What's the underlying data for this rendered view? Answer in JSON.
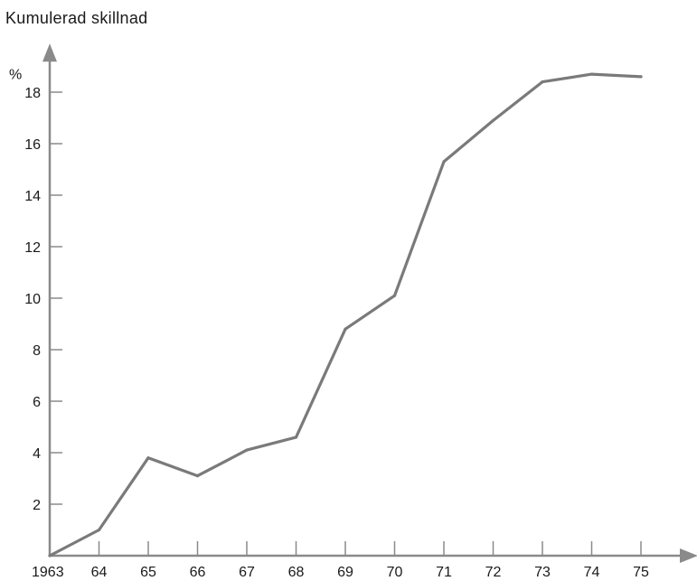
{
  "chart_data": {
    "type": "line",
    "title": "Kumulerad skillnad",
    "ylabel": "%",
    "xlabel": "",
    "x_tick_labels": [
      "1963",
      "64",
      "65",
      "66",
      "67",
      "68",
      "69",
      "70",
      "71",
      "72",
      "73",
      "74",
      "75"
    ],
    "y_ticks": [
      2,
      4,
      6,
      8,
      10,
      12,
      14,
      16,
      18
    ],
    "xlim": [
      1963,
      1975
    ],
    "ylim": [
      0,
      19.5
    ],
    "grid": false,
    "series": [
      {
        "x": [
          1963,
          1964,
          1965,
          1966,
          1967,
          1968,
          1969,
          1970,
          1971,
          1972,
          1973,
          1974,
          1975
        ],
        "y": [
          0,
          1.0,
          3.8,
          3.1,
          4.1,
          4.6,
          8.8,
          10.1,
          15.3,
          16.9,
          18.4,
          18.7,
          18.6
        ]
      }
    ],
    "colors": {
      "line": "#7a7a7a",
      "axis": "#8a8a8a",
      "text": "#1a1a1a"
    }
  }
}
